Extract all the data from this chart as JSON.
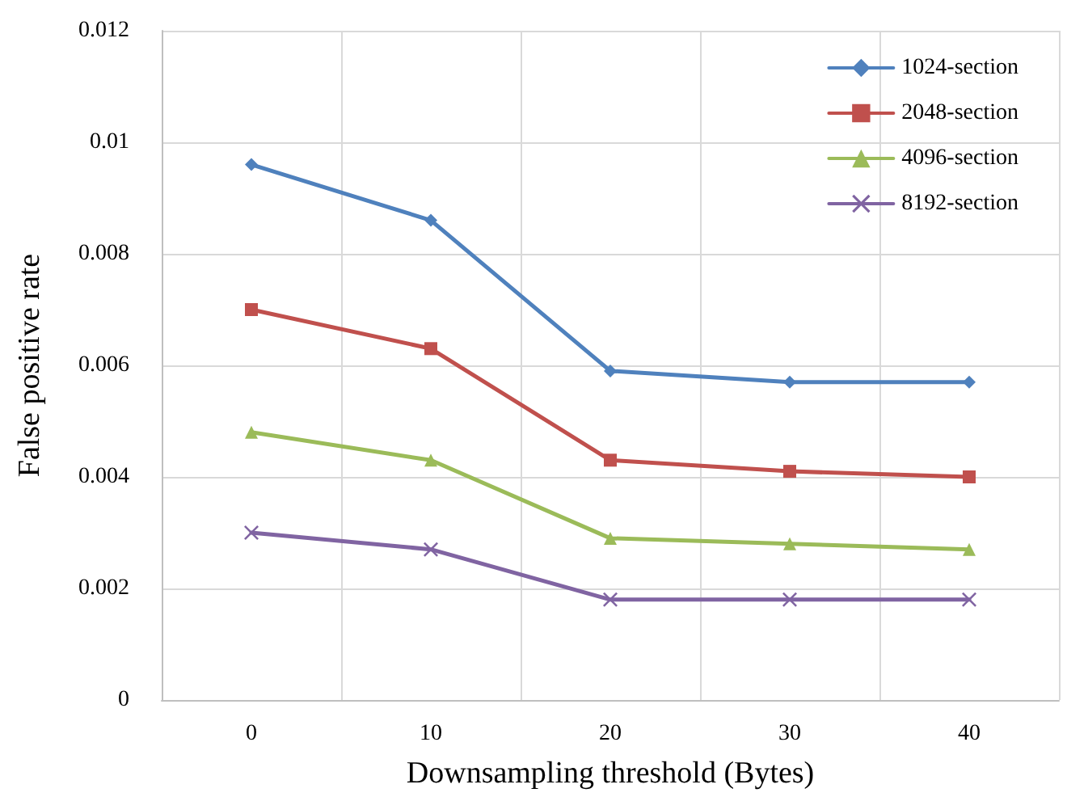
{
  "chart_data": {
    "type": "line",
    "xlabel": "Downsampling threshold (Bytes)",
    "ylabel": "False positive rate",
    "categories": [
      "0",
      "10",
      "20",
      "30",
      "40"
    ],
    "series": [
      {
        "name": "1024-section",
        "color": "#4f81bd",
        "marker": "diamond",
        "values": [
          0.0096,
          0.0086,
          0.0059,
          0.0057,
          0.0057
        ]
      },
      {
        "name": "2048-section",
        "color": "#c0504d",
        "marker": "square",
        "values": [
          0.007,
          0.0063,
          0.0043,
          0.0041,
          0.004
        ]
      },
      {
        "name": "4096-section",
        "color": "#9bbb59",
        "marker": "triangle",
        "values": [
          0.0048,
          0.0043,
          0.0029,
          0.0028,
          0.0027
        ]
      },
      {
        "name": "8192-section",
        "color": "#8064a2",
        "marker": "cross",
        "values": [
          0.003,
          0.0027,
          0.0018,
          0.0018,
          0.0018
        ]
      }
    ],
    "ylim": [
      0,
      0.012
    ],
    "yticks": [
      0,
      0.002,
      0.004,
      0.006,
      0.008,
      0.01,
      0.012
    ],
    "grid": true,
    "legend": "top right",
    "line_style": "solid"
  }
}
